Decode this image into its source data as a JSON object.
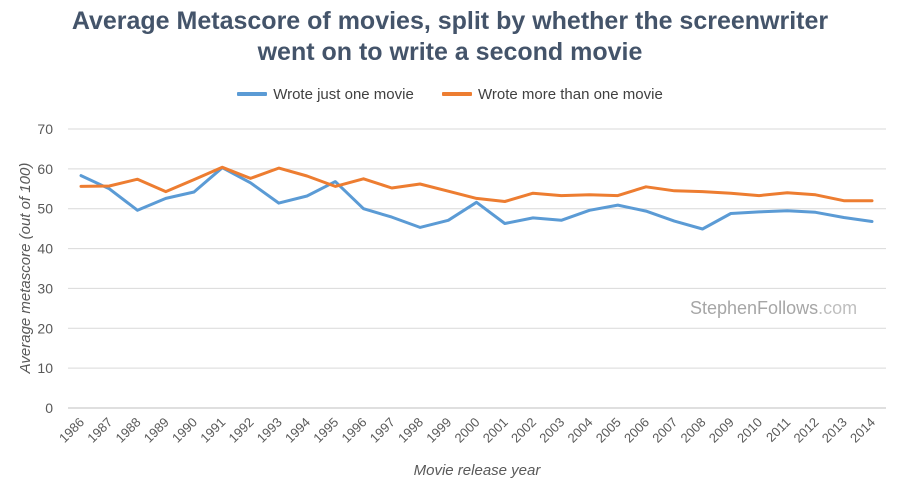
{
  "chart_data": {
    "type": "line",
    "title_lines": [
      "Average Metascore of movies, split by whether the screenwriter",
      "went on to write a second movie"
    ],
    "xlabel": "Movie release year",
    "ylabel": "Average metascore (out of 100)",
    "ylim": [
      0,
      70
    ],
    "yticks": [
      "0",
      "10",
      "20",
      "30",
      "40",
      "50",
      "60",
      "70"
    ],
    "grid": true,
    "legend_position": "top",
    "categories": [
      "1986",
      "1987",
      "1988",
      "1989",
      "1990",
      "1991",
      "1992",
      "1993",
      "1994",
      "1995",
      "1996",
      "1997",
      "1998",
      "1999",
      "2000",
      "2001",
      "2002",
      "2003",
      "2004",
      "2005",
      "2006",
      "2007",
      "2008",
      "2009",
      "2010",
      "2011",
      "2012",
      "2013",
      "2014"
    ],
    "series": [
      {
        "name": "Wrote just one movie",
        "color": "#5b9bd5",
        "values": [
          58.3,
          55.0,
          49.6,
          52.6,
          54.2,
          60.3,
          56.5,
          51.4,
          53.2,
          56.8,
          50.0,
          47.9,
          45.3,
          47.1,
          51.6,
          46.3,
          47.7,
          47.1,
          49.6,
          50.9,
          49.4,
          46.9,
          44.9,
          48.8,
          49.2,
          49.5,
          49.1,
          47.8,
          46.8
        ]
      },
      {
        "name": "Wrote more than one movie",
        "color": "#ed7d31",
        "values": [
          55.6,
          55.7,
          57.4,
          54.3,
          57.3,
          60.4,
          57.6,
          60.2,
          58.2,
          55.6,
          57.5,
          55.2,
          56.2,
          54.4,
          52.6,
          51.8,
          53.9,
          53.3,
          53.5,
          53.3,
          55.5,
          54.5,
          54.3,
          53.9,
          53.3,
          54.0,
          53.5,
          52.0,
          52.0
        ]
      }
    ]
  },
  "watermark": {
    "main": "StephenFollows",
    "suffix": ".com"
  }
}
